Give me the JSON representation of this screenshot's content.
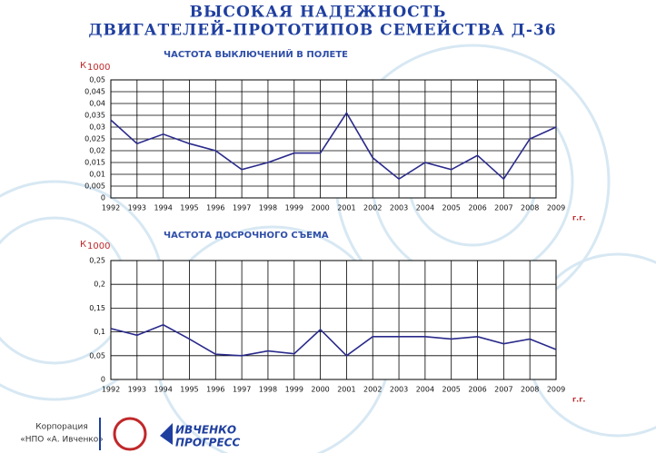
{
  "title": [
    "ВЫСОКАЯ НАДЕЖНОСТЬ",
    "ДВИГАТЕЛЕЙ-ПРОТОТИПОВ СЕМЕЙСТВА Д-36"
  ],
  "footer": [
    "Корпорация",
    "«НПО «А. Ивченко»",
    "ИВЧЕНКО",
    "ПРОГРЕСС"
  ],
  "chart_data": [
    {
      "type": "line",
      "title": "ЧАСТОТА ВЫКЛЮЧЕНИЙ В ПОЛЕТЕ",
      "y_label": "К",
      "y_label_subscript": "1000",
      "x_label": "г.г.",
      "categories": [
        "1992",
        "1993",
        "1994",
        "1995",
        "1996",
        "1997",
        "1998",
        "1999",
        "2000",
        "2001",
        "2002",
        "2003",
        "2004",
        "2005",
        "2006",
        "2007",
        "2008",
        "2009"
      ],
      "values": [
        0.033,
        0.023,
        0.027,
        0.023,
        0.02,
        0.012,
        0.015,
        0.019,
        0.019,
        0.036,
        0.017,
        0.008,
        0.015,
        0.012,
        0.018,
        0.008,
        0.025,
        0.03
      ],
      "color": "#2a2a8c",
      "grid": true,
      "ylim": [
        0,
        0.05
      ],
      "yticks": [
        0,
        {
          "value": 0.005,
          "label": "0,005"
        },
        {
          "value": 0.01,
          "label": "0,01"
        },
        {
          "value": 0.015,
          "label": "0,015"
        },
        {
          "value": 0.02,
          "label": "0,02"
        },
        {
          "value": 0.025,
          "label": "0,025"
        },
        {
          "value": 0.03,
          "label": "0,03"
        },
        {
          "value": 0.035,
          "label": "0,035"
        },
        {
          "value": 0.04,
          "label": "0,04"
        },
        {
          "value": 0.045,
          "label": "0,045"
        },
        {
          "value": 0.05,
          "label": "0,05"
        }
      ]
    },
    {
      "type": "line",
      "title": "ЧАСТОТА ДОСРОЧНОГО СЪЕМА",
      "y_label": "К",
      "y_label_subscript": "1000",
      "x_label": "г.г.",
      "categories": [
        "1992",
        "1993",
        "1994",
        "1995",
        "1996",
        "1997",
        "1998",
        "1999",
        "2000",
        "2001",
        "2002",
        "2003",
        "2004",
        "2005",
        "2006",
        "2007",
        "2008",
        "2009"
      ],
      "values": [
        0.107,
        0.093,
        0.115,
        0.085,
        0.053,
        0.05,
        0.06,
        0.054,
        0.105,
        0.05,
        0.09,
        0.09,
        0.09,
        0.085,
        0.09,
        0.075,
        0.085,
        0.063
      ],
      "color": "#2a2a8c",
      "grid": true,
      "ylim": [
        0,
        0.25
      ],
      "yticks": [
        0,
        {
          "value": 0.05,
          "label": "0,05"
        },
        {
          "value": 0.1,
          "label": "0,1"
        },
        {
          "value": 0.15,
          "label": "0,15"
        },
        {
          "value": 0.2,
          "label": "0,2"
        },
        {
          "value": 0.25,
          "label": "0,25"
        }
      ]
    }
  ]
}
